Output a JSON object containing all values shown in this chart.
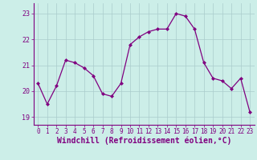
{
  "x": [
    0,
    1,
    2,
    3,
    4,
    5,
    6,
    7,
    8,
    9,
    10,
    11,
    12,
    13,
    14,
    15,
    16,
    17,
    18,
    19,
    20,
    21,
    22,
    23
  ],
  "y": [
    20.3,
    19.5,
    20.2,
    21.2,
    21.1,
    20.9,
    20.6,
    19.9,
    19.8,
    20.3,
    21.8,
    22.1,
    22.3,
    22.4,
    22.4,
    23.0,
    22.9,
    22.4,
    21.1,
    20.5,
    20.4,
    20.1,
    20.5,
    19.2
  ],
  "line_color": "#800080",
  "marker": "D",
  "marker_size": 2.0,
  "bg_color": "#cceee8",
  "grid_color": "#aacccc",
  "xlabel": "Windchill (Refroidissement éolien,°C)",
  "xlim": [
    -0.5,
    23.5
  ],
  "ylim": [
    18.7,
    23.4
  ],
  "yticks": [
    19,
    20,
    21,
    22,
    23
  ],
  "xticks": [
    0,
    1,
    2,
    3,
    4,
    5,
    6,
    7,
    8,
    9,
    10,
    11,
    12,
    13,
    14,
    15,
    16,
    17,
    18,
    19,
    20,
    21,
    22,
    23
  ],
  "tick_color": "#800080",
  "tick_fontsize": 5.5,
  "xlabel_fontsize": 7.0,
  "spine_color": "#800080"
}
